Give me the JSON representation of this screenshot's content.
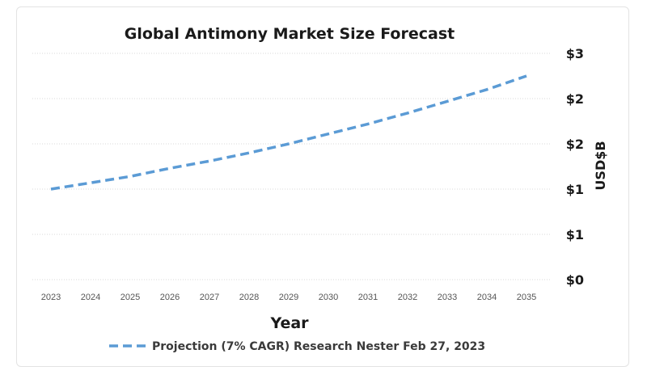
{
  "chart_data": {
    "type": "line",
    "title": "Global Antimony Market Size Forecast",
    "xlabel": "Year",
    "ylabel": "USD$B",
    "x": [
      "2023",
      "2024",
      "2025",
      "2026",
      "2027",
      "2028",
      "2029",
      "2030",
      "2031",
      "2032",
      "2033",
      "2034",
      "2035"
    ],
    "y_tick_labels": [
      "$0",
      "$1",
      "$1",
      "$2",
      "$2",
      "$3"
    ],
    "ylim": [
      0,
      2.5
    ],
    "grid": true,
    "legend_position": "bottom",
    "series": [
      {
        "name": "Projection (7% CAGR) Research Nester Feb 27, 2023",
        "color": "#5b9bd5",
        "style": "dashed",
        "values": [
          1.0,
          1.07,
          1.14,
          1.23,
          1.31,
          1.4,
          1.5,
          1.61,
          1.72,
          1.84,
          1.97,
          2.1,
          2.25
        ]
      }
    ]
  }
}
